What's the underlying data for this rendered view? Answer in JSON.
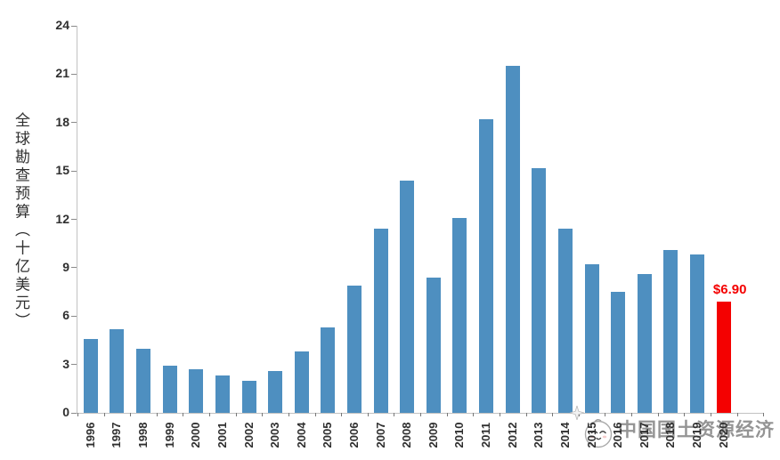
{
  "chart_data": {
    "type": "bar",
    "title": "",
    "ylabel": "全球勘查预算（十亿美元）",
    "xlabel": "",
    "categories": [
      "1996",
      "1997",
      "1998",
      "1999",
      "2000",
      "2001",
      "2002",
      "2003",
      "2004",
      "2005",
      "2006",
      "2007",
      "2008",
      "2009",
      "2010",
      "2011",
      "2012",
      "2013",
      "2014",
      "2015",
      "2016",
      "2017",
      "2018",
      "2019",
      "2020"
    ],
    "values": [
      4.6,
      5.2,
      4.0,
      2.9,
      2.7,
      2.3,
      2.0,
      2.6,
      3.8,
      5.3,
      7.9,
      11.4,
      14.4,
      8.4,
      12.1,
      18.2,
      21.5,
      15.2,
      11.4,
      9.2,
      7.5,
      8.6,
      10.1,
      9.8,
      6.9
    ],
    "ylim": [
      0,
      24
    ],
    "yticks": [
      0,
      3,
      6,
      9,
      12,
      15,
      18,
      21,
      24
    ],
    "grid": false,
    "legend": null,
    "bar_color": "#4e8fc0",
    "highlight": {
      "index": 24,
      "color": "#f40101"
    },
    "annotation": {
      "text": "$6.90",
      "color": "#f40101",
      "target_category": "2020"
    },
    "axis_color": "#c2c2c2",
    "tick_color": "#8a8a8a",
    "label_color": "#2f2f2f"
  },
  "watermark": {
    "text": "中国国土资源经济",
    "logo": "mascot-face-logo",
    "sparkle": "four-point-star"
  }
}
